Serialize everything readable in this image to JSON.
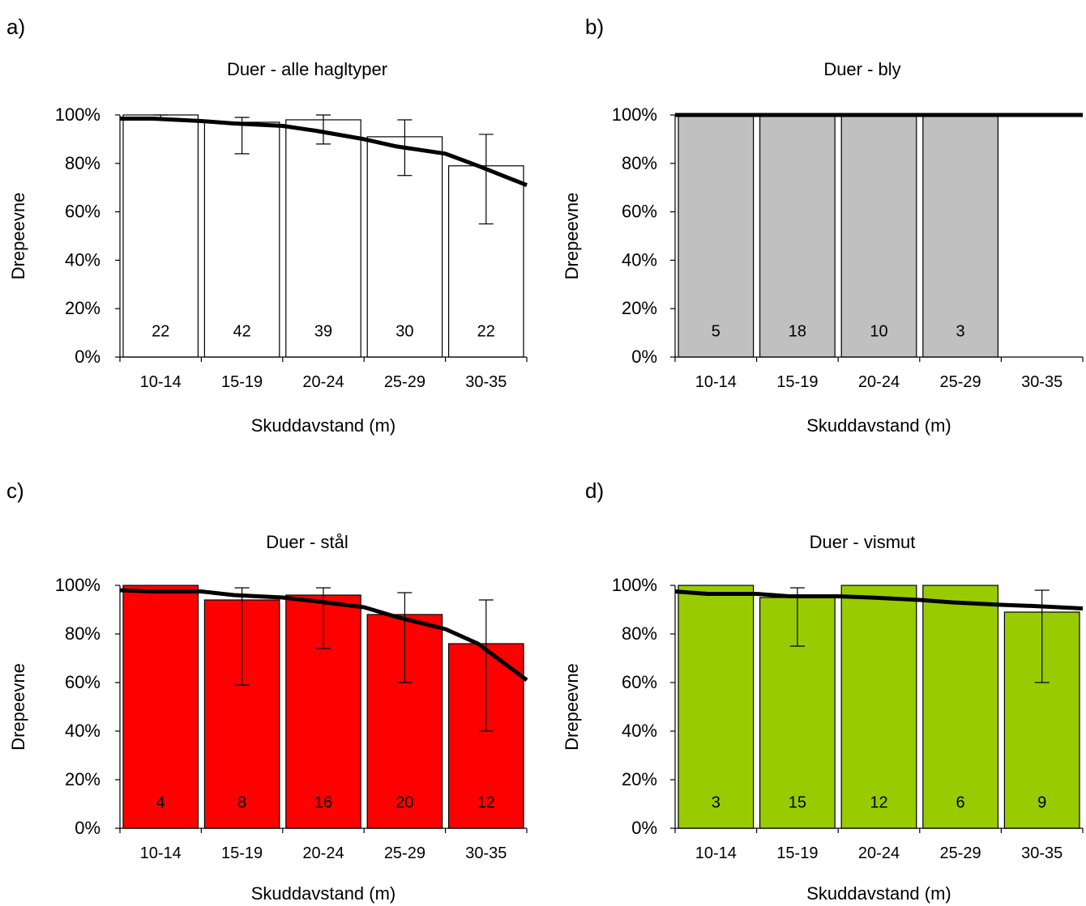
{
  "figure": {
    "background": "#ffffff"
  },
  "chart_data": [
    {
      "panel": "a)",
      "type": "bar",
      "title": "Duer - alle hagltyper",
      "xlabel": "Skuddavstand (m)",
      "ylabel": "Drepeevne",
      "categories": [
        "10-14",
        "15-19",
        "20-24",
        "25-29",
        "30-35"
      ],
      "values": [
        100,
        97,
        98,
        91,
        79
      ],
      "error_bars": [
        [
          98,
          100
        ],
        [
          84,
          99
        ],
        [
          88,
          100
        ],
        [
          75,
          98
        ],
        [
          55,
          92
        ]
      ],
      "counts": [
        "22",
        "42",
        "39",
        "30",
        "22"
      ],
      "bar_color": "#ffffff",
      "count_color": "#000000",
      "trend_line": {
        "x": [
          10,
          12,
          15,
          17,
          20,
          22,
          25,
          27,
          30,
          32,
          35
        ],
        "y": [
          98.5,
          98.5,
          97.5,
          96.5,
          95.5,
          93.5,
          90,
          87,
          84,
          79,
          71
        ]
      },
      "ylim": [
        0,
        100
      ],
      "yticks": [
        "0%",
        "20%",
        "40%",
        "60%",
        "80%",
        "100%"
      ],
      "grid": false,
      "legend": "none"
    },
    {
      "panel": "b)",
      "type": "bar",
      "title": "Duer - bly",
      "xlabel": "Skuddavstand (m)",
      "ylabel": "Drepeevne",
      "categories": [
        "10-14",
        "15-19",
        "20-24",
        "25-29",
        "30-35"
      ],
      "values": [
        100,
        100,
        100,
        100,
        null
      ],
      "error_bars": [
        null,
        null,
        null,
        null,
        null
      ],
      "counts": [
        "5",
        "18",
        "10",
        "3",
        ""
      ],
      "bar_color": "#c0c0c0",
      "count_color": "#000000",
      "trend_line": {
        "x": [
          10,
          15,
          20,
          25,
          30,
          35
        ],
        "y": [
          100,
          100,
          100,
          100,
          100,
          100
        ]
      },
      "ylim": [
        0,
        100
      ],
      "yticks": [
        "0%",
        "20%",
        "40%",
        "60%",
        "80%",
        "100%"
      ],
      "grid": false,
      "legend": "none"
    },
    {
      "panel": "c)",
      "type": "bar",
      "title": "Duer - stål",
      "xlabel": "Skuddavstand (m)",
      "ylabel": "Drepeevne",
      "categories": [
        "10-14",
        "15-19",
        "20-24",
        "25-29",
        "30-35"
      ],
      "values": [
        100,
        94,
        96,
        88,
        76
      ],
      "error_bars": [
        null,
        [
          59,
          99
        ],
        [
          74,
          99
        ],
        [
          60,
          97
        ],
        [
          40,
          94
        ]
      ],
      "counts": [
        "4",
        "8",
        "16",
        "20",
        "12"
      ],
      "bar_color": "#ff0000",
      "count_color": "#000000",
      "trend_line": {
        "x": [
          10,
          12,
          15,
          17,
          20,
          22,
          25,
          27,
          30,
          32,
          35
        ],
        "y": [
          98,
          97.5,
          97.5,
          96,
          95,
          93.5,
          91,
          87,
          82,
          76,
          61
        ]
      },
      "ylim": [
        0,
        100
      ],
      "yticks": [
        "0%",
        "20%",
        "40%",
        "60%",
        "80%",
        "100%"
      ],
      "grid": false,
      "legend": "none"
    },
    {
      "panel": "d)",
      "type": "bar",
      "title": "Duer - vismut",
      "xlabel": "Skuddavstand (m)",
      "ylabel": "Drepeevne",
      "categories": [
        "10-14",
        "15-19",
        "20-24",
        "25-29",
        "30-35"
      ],
      "values": [
        100,
        95,
        100,
        100,
        89
      ],
      "error_bars": [
        null,
        [
          75,
          99
        ],
        null,
        null,
        [
          60,
          98
        ]
      ],
      "counts": [
        "3",
        "15",
        "12",
        "6",
        "9"
      ],
      "bar_color": "#99cc00",
      "count_color": "#000000",
      "trend_line": {
        "x": [
          10,
          12,
          15,
          17,
          20,
          22,
          25,
          27,
          30,
          32,
          35
        ],
        "y": [
          97.5,
          96.5,
          96.5,
          95.5,
          95.5,
          95,
          94,
          93,
          92,
          91.5,
          90.5
        ]
      },
      "ylim": [
        0,
        100
      ],
      "yticks": [
        "0%",
        "20%",
        "40%",
        "60%",
        "80%",
        "100%"
      ],
      "grid": false,
      "legend": "none"
    }
  ]
}
